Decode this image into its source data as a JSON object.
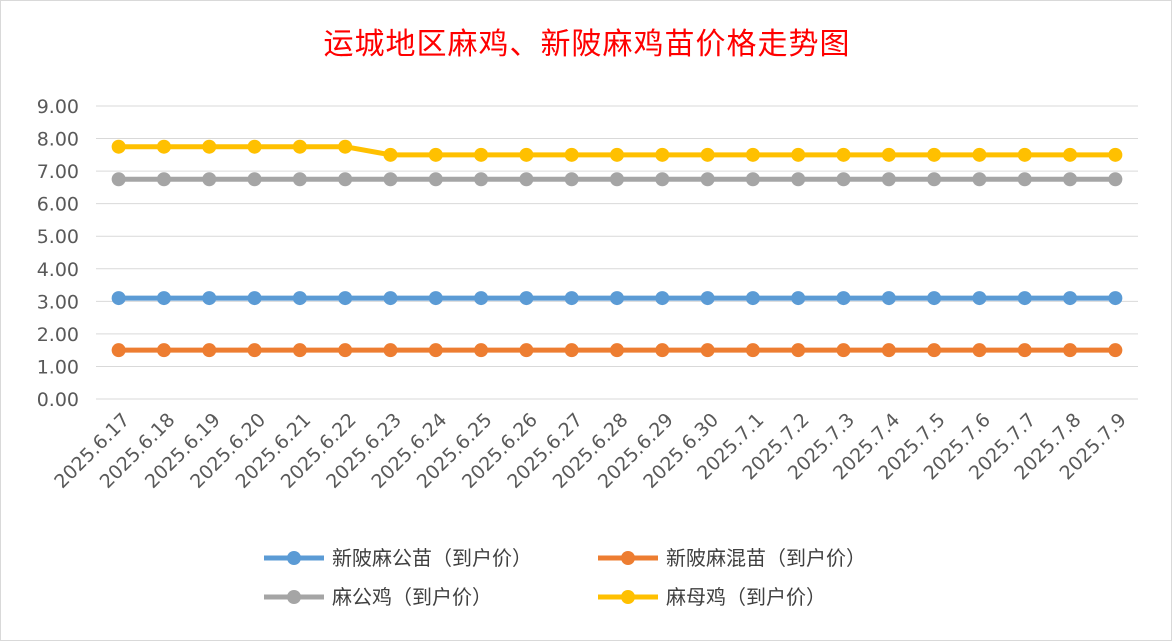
{
  "chart_data": {
    "type": "line",
    "title": "运城地区麻鸡、新陂麻鸡苗价格走势图",
    "xlabel": "",
    "ylabel": "",
    "ylim": [
      0,
      9
    ],
    "ytick_labels": [
      "0.00",
      "1.00",
      "2.00",
      "3.00",
      "4.00",
      "5.00",
      "6.00",
      "7.00",
      "8.00",
      "9.00"
    ],
    "grid": true,
    "legend_position": "bottom",
    "categories": [
      "2025.6.17",
      "2025.6.18",
      "2025.6.19",
      "2025.6.20",
      "2025.6.21",
      "2025.6.22",
      "2025.6.23",
      "2025.6.24",
      "2025.6.25",
      "2025.6.26",
      "2025.6.27",
      "2025.6.28",
      "2025.6.29",
      "2025.6.30",
      "2025.7.1",
      "2025.7.2",
      "2025.7.3",
      "2025.7.4",
      "2025.7.5",
      "2025.7.6",
      "2025.7.7",
      "2025.7.8",
      "2025.7.9"
    ],
    "series": [
      {
        "name": "新陂麻公苗（到户价）",
        "color": "#5b9bd5",
        "values": [
          3.1,
          3.1,
          3.1,
          3.1,
          3.1,
          3.1,
          3.1,
          3.1,
          3.1,
          3.1,
          3.1,
          3.1,
          3.1,
          3.1,
          3.1,
          3.1,
          3.1,
          3.1,
          3.1,
          3.1,
          3.1,
          3.1,
          3.1
        ]
      },
      {
        "name": "新陂麻混苗（到户价）",
        "color": "#ed7d31",
        "values": [
          1.5,
          1.5,
          1.5,
          1.5,
          1.5,
          1.5,
          1.5,
          1.5,
          1.5,
          1.5,
          1.5,
          1.5,
          1.5,
          1.5,
          1.5,
          1.5,
          1.5,
          1.5,
          1.5,
          1.5,
          1.5,
          1.5,
          1.5
        ]
      },
      {
        "name": "麻公鸡（到户价）",
        "color": "#a5a5a5",
        "values": [
          6.75,
          6.75,
          6.75,
          6.75,
          6.75,
          6.75,
          6.75,
          6.75,
          6.75,
          6.75,
          6.75,
          6.75,
          6.75,
          6.75,
          6.75,
          6.75,
          6.75,
          6.75,
          6.75,
          6.75,
          6.75,
          6.75,
          6.75
        ]
      },
      {
        "name": "麻母鸡（到户价）",
        "color": "#ffc000",
        "values": [
          7.75,
          7.75,
          7.75,
          7.75,
          7.75,
          7.75,
          7.5,
          7.5,
          7.5,
          7.5,
          7.5,
          7.5,
          7.5,
          7.5,
          7.5,
          7.5,
          7.5,
          7.5,
          7.5,
          7.5,
          7.5,
          7.5,
          7.5
        ]
      }
    ]
  }
}
